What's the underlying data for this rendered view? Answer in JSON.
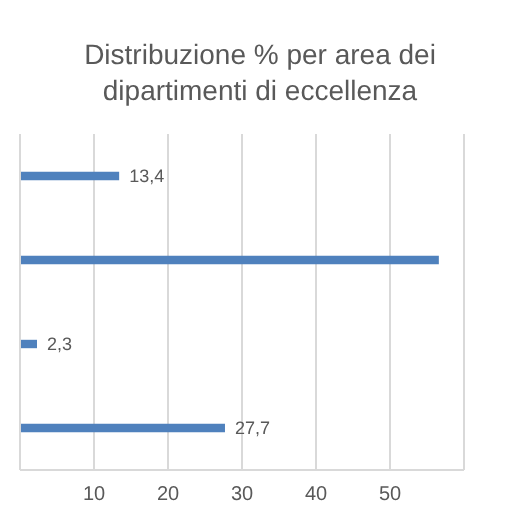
{
  "chart_data": {
    "type": "bar",
    "orientation": "horizontal",
    "title": "Distribuzione % per area dei dipartimenti di eccellenza",
    "categories": [
      null,
      null,
      null,
      null
    ],
    "values": [
      13.4,
      56.6,
      2.3,
      27.7
    ],
    "value_labels": [
      "13,4",
      null,
      "2,3",
      "27,7"
    ],
    "color": "#4f81bd",
    "xlim": [
      0,
      60
    ],
    "xticks": [
      10,
      20,
      30,
      40,
      50
    ],
    "grid": "x"
  }
}
